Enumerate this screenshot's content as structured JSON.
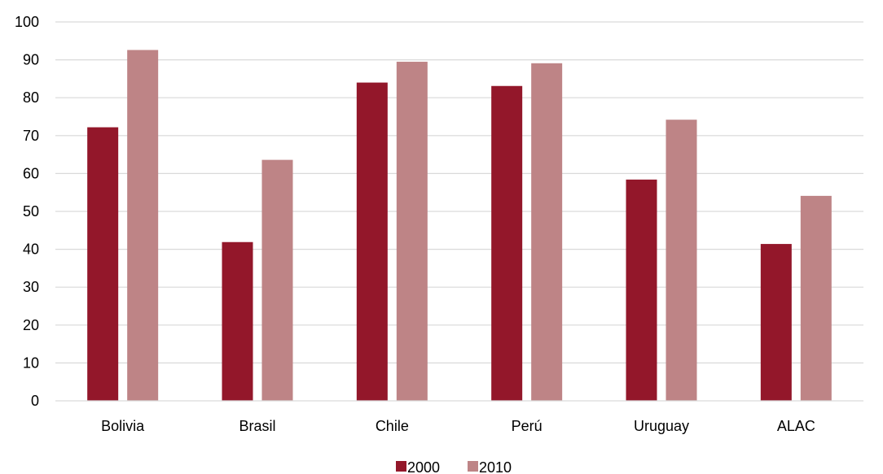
{
  "chart_data": {
    "type": "bar",
    "categories": [
      "Bolivia",
      "Brasil",
      "Chile",
      "Perú",
      "Uruguay",
      "ALAC"
    ],
    "series": [
      {
        "name": "2000",
        "values": [
          72.2,
          41.9,
          84.0,
          83.1,
          58.4,
          41.4
        ],
        "color": "#93172a"
      },
      {
        "name": "2010",
        "values": [
          92.6,
          63.6,
          89.5,
          89.1,
          74.2,
          54.1
        ],
        "color": "#be8486"
      }
    ],
    "ylim": [
      0,
      100
    ],
    "yticks": [
      0,
      10,
      20,
      30,
      40,
      50,
      60,
      70,
      80,
      90,
      100
    ],
    "grid": true,
    "gridline_color": "#d9d9d9",
    "legend_position": "bottom",
    "title": "",
    "xlabel": "",
    "ylabel": ""
  }
}
